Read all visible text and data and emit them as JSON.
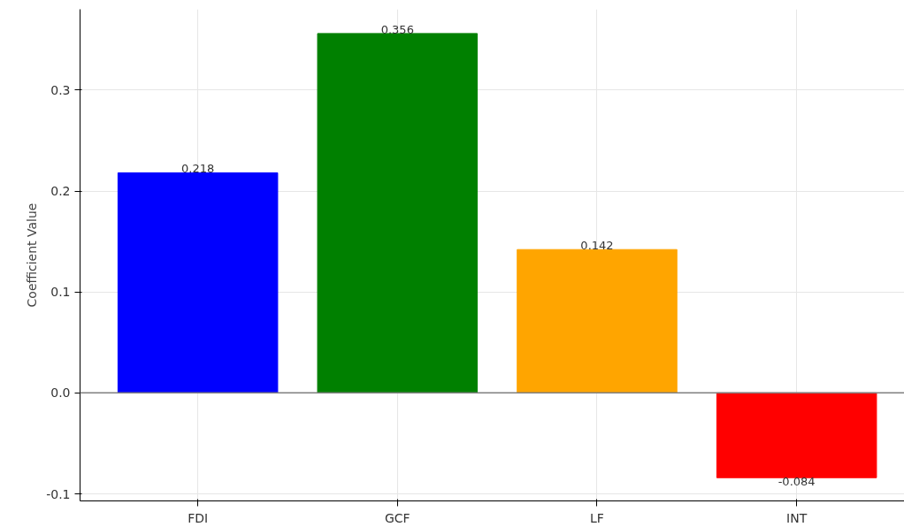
{
  "chart_data": {
    "type": "bar",
    "ylabel": "Coefficient Value",
    "categories": [
      "FDI",
      "GCF",
      "LF",
      "INT"
    ],
    "values": [
      0.218,
      0.356,
      0.142,
      -0.084
    ],
    "colors": [
      "#0000ff",
      "#008000",
      "#ffa500",
      "#ff0000"
    ],
    "ylim": [
      -0.107,
      0.38
    ],
    "yticks": [
      -0.1,
      {
        "value": 0,
        "label": "0.0"
      },
      0.1,
      0.2,
      0.3
    ],
    "ref_lines": [
      {
        "axis": "y",
        "value": 0,
        "color": "#808080"
      }
    ],
    "grid": true,
    "data_labels": true
  }
}
